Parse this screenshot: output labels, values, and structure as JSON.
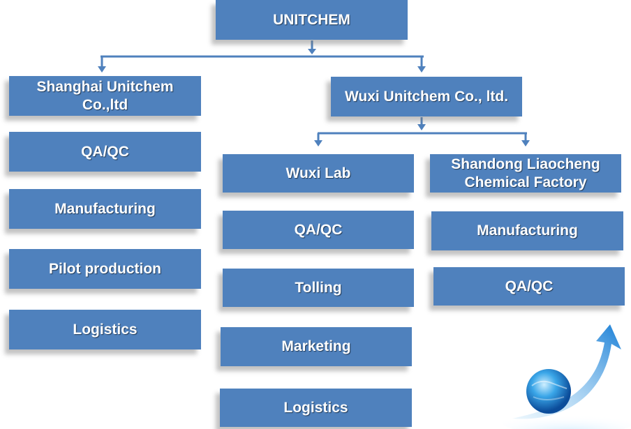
{
  "root": {
    "label": "UNITCHEM"
  },
  "shanghai": {
    "title_line1": "Shanghai Unitchem",
    "title_line2": "Co.,ltd",
    "items": [
      "QA/QC",
      "Manufacturing",
      "Pilot production",
      "Logistics"
    ]
  },
  "wuxi": {
    "title": "Wuxi Unitchem Co., ltd."
  },
  "wuxi_lab": {
    "title": "Wuxi Lab",
    "items": [
      "QA/QC",
      "Tolling",
      "Marketing",
      "Logistics"
    ]
  },
  "shandong": {
    "title_line1": "Shandong Liaocheng",
    "title_line2": "Chemical Factory",
    "items": [
      "Manufacturing",
      "QA/QC"
    ]
  },
  "colors": {
    "box_fill": "#4f81bd",
    "text": "#ffffff",
    "connector": "#4f81bd"
  }
}
